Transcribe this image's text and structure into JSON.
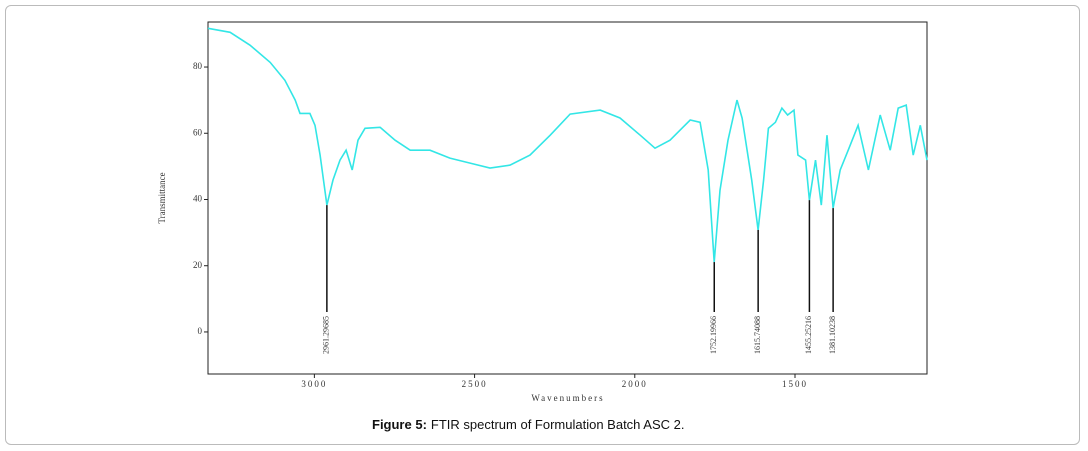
{
  "chart_data": {
    "type": "line",
    "caption_label": "Figure 5:",
    "caption": "FTIR spectrum of Formulation Batch ASC 2.",
    "xlabel": "Wavenumbers",
    "ylabel": "Transmittance",
    "x": [
      3332,
      3263,
      3201,
      3138,
      3092,
      3060,
      3045,
      3014,
      2998,
      2982,
      2961,
      2942,
      2920,
      2901,
      2882,
      2864,
      2842,
      2795,
      2748,
      2701,
      2639,
      2577,
      2514,
      2452,
      2389,
      2327,
      2264,
      2202,
      2108,
      2046,
      1983,
      1937,
      1890,
      1827,
      1796,
      1771,
      1752,
      1734,
      1709,
      1681,
      1665,
      1635,
      1615,
      1598,
      1583,
      1561,
      1541,
      1523,
      1503,
      1491,
      1467,
      1455,
      1436,
      1418,
      1400,
      1381,
      1359,
      1334,
      1303,
      1271,
      1234,
      1203,
      1178,
      1153,
      1131,
      1109,
      1088
    ],
    "series": [
      {
        "name": "Transmittance",
        "color": "#33e6e6",
        "values": [
          91.7,
          90.5,
          86.6,
          81.4,
          76,
          70,
          66,
          66,
          62.4,
          53.4,
          38.3,
          45.9,
          51.9,
          54.9,
          48.9,
          57.9,
          61.5,
          61.8,
          57.9,
          54.9,
          54.9,
          52.5,
          51,
          49.5,
          50.4,
          53.4,
          59.4,
          65.8,
          67,
          64.6,
          59.4,
          55.5,
          57.9,
          64,
          63.3,
          48.9,
          21.1,
          42.8,
          57.9,
          70,
          64.6,
          45.9,
          30.8,
          45.9,
          61.5,
          63.3,
          67.6,
          65.5,
          67,
          53.4,
          51.9,
          39.8,
          51.9,
          38.3,
          59.4,
          37.4,
          48.9,
          54.9,
          62.4,
          48.9,
          65.5,
          54.9,
          67.6,
          68.5,
          53.4,
          62.4,
          51.9
        ]
      }
    ],
    "xlim": [
      3332,
      1088
    ],
    "ylim": [
      -12.7,
      93.6
    ],
    "xticks": [
      3000,
      2500,
      2000,
      1500
    ],
    "yticks": [
      80,
      60,
      40,
      20,
      0
    ],
    "annotations": [
      {
        "x": 2961,
        "y": 38.3,
        "label": "2961.29685"
      },
      {
        "x": 1752,
        "y": 21.1,
        "label": "1752.19966"
      },
      {
        "x": 1615,
        "y": 30.8,
        "label": "1615.74088"
      },
      {
        "x": 1455,
        "y": 39.8,
        "label": "1455.25216"
      },
      {
        "x": 1381,
        "y": 37.4,
        "label": "1381.10238"
      }
    ]
  }
}
